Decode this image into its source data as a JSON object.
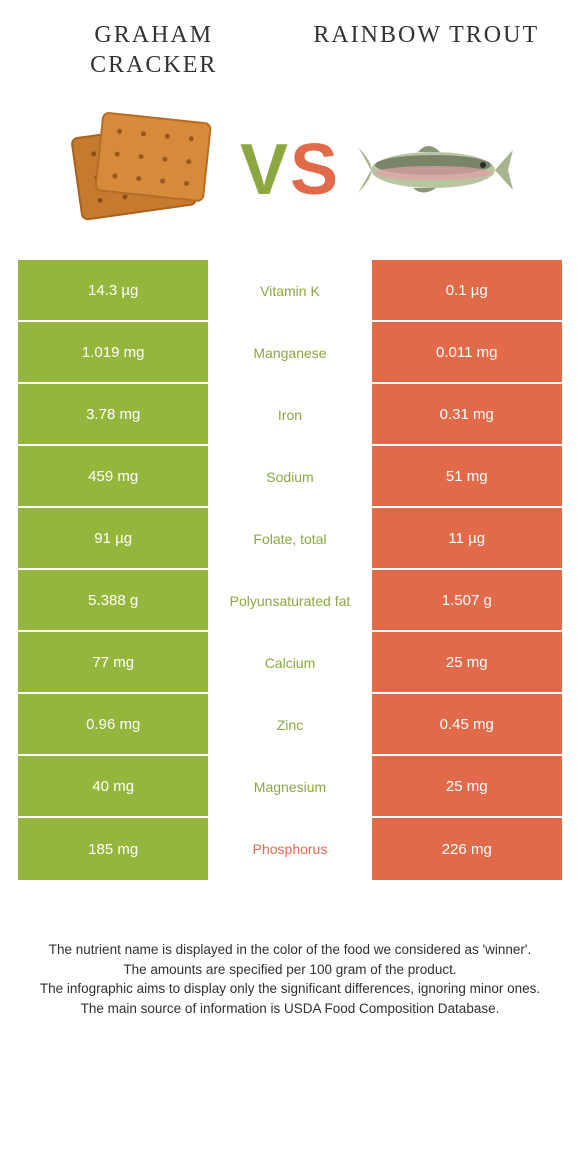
{
  "colors": {
    "left": "#95b63d",
    "right": "#e06a49",
    "leftText": "#8aa83f",
    "rightText": "#e06a49",
    "white": "#ffffff"
  },
  "header": {
    "leftTitle": "GRAHAM CRACKER",
    "rightTitle": "RAINBOW TROUT"
  },
  "vs": {
    "v": "V",
    "s": "S"
  },
  "rows": [
    {
      "left": "14.3 µg",
      "label": "Vitamin K",
      "right": "0.1 µg",
      "winner": "left"
    },
    {
      "left": "1.019 mg",
      "label": "Manganese",
      "right": "0.011 mg",
      "winner": "left"
    },
    {
      "left": "3.78 mg",
      "label": "Iron",
      "right": "0.31 mg",
      "winner": "left"
    },
    {
      "left": "459 mg",
      "label": "Sodium",
      "right": "51 mg",
      "winner": "left"
    },
    {
      "left": "91 µg",
      "label": "Folate, total",
      "right": "11 µg",
      "winner": "left"
    },
    {
      "left": "5.388 g",
      "label": "Polyunsaturated fat",
      "right": "1.507 g",
      "winner": "left"
    },
    {
      "left": "77 mg",
      "label": "Calcium",
      "right": "25 mg",
      "winner": "left"
    },
    {
      "left": "0.96 mg",
      "label": "Zinc",
      "right": "0.45 mg",
      "winner": "left"
    },
    {
      "left": "40 mg",
      "label": "Magnesium",
      "right": "25 mg",
      "winner": "left"
    },
    {
      "left": "185 mg",
      "label": "Phosphorus",
      "right": "226 mg",
      "winner": "right"
    }
  ],
  "footer": {
    "line1": "The nutrient name is displayed in the color of the food we considered as 'winner'.",
    "line2": "The amounts are specified per 100 gram of the product.",
    "line3": "The infographic aims to display only the significant differences, ignoring minor ones.",
    "line4": "The main source of information is USDA Food Composition Database."
  }
}
